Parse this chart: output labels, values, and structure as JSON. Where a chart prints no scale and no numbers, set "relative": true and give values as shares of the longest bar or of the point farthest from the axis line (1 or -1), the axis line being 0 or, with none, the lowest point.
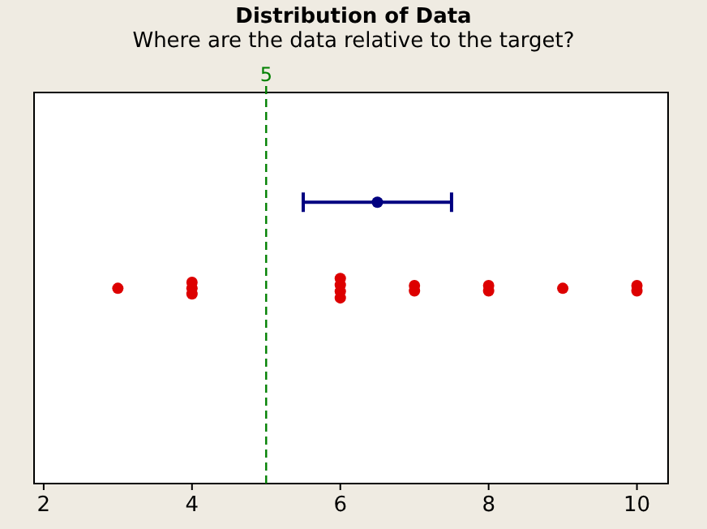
{
  "chart_data": {
    "type": "scatter",
    "title": "Distribution of Data",
    "subtitle": "Where are the data relative to the target?",
    "xlim": [
      1.87,
      10.42
    ],
    "xticks": [
      2,
      4,
      6,
      8,
      10
    ],
    "relative": true,
    "tick_labels": "x",
    "grid": false,
    "marker": "circle",
    "series": [
      {
        "color": "#dd0000",
        "x": [
          3,
          4,
          4,
          4,
          6,
          6,
          6,
          6,
          7,
          7,
          8,
          8,
          9,
          10,
          10
        ],
        "values": [
          0.694,
          0.674,
          0.694,
          0.715,
          0.66,
          0.683,
          0.706,
          0.729,
          0.685,
          0.704,
          0.685,
          0.704,
          0.694,
          0.685,
          0.704
        ]
      },
      {
        "color": "#000080",
        "x": [
          6.5
        ],
        "values": [
          1
        ],
        "xerrors": [
          [
            5.5,
            7.5
          ]
        ]
      }
    ],
    "ref_lines": [
      {
        "axis": "x",
        "value": 5,
        "label": "5",
        "color": "#008000",
        "line_style": "dashed"
      }
    ]
  }
}
